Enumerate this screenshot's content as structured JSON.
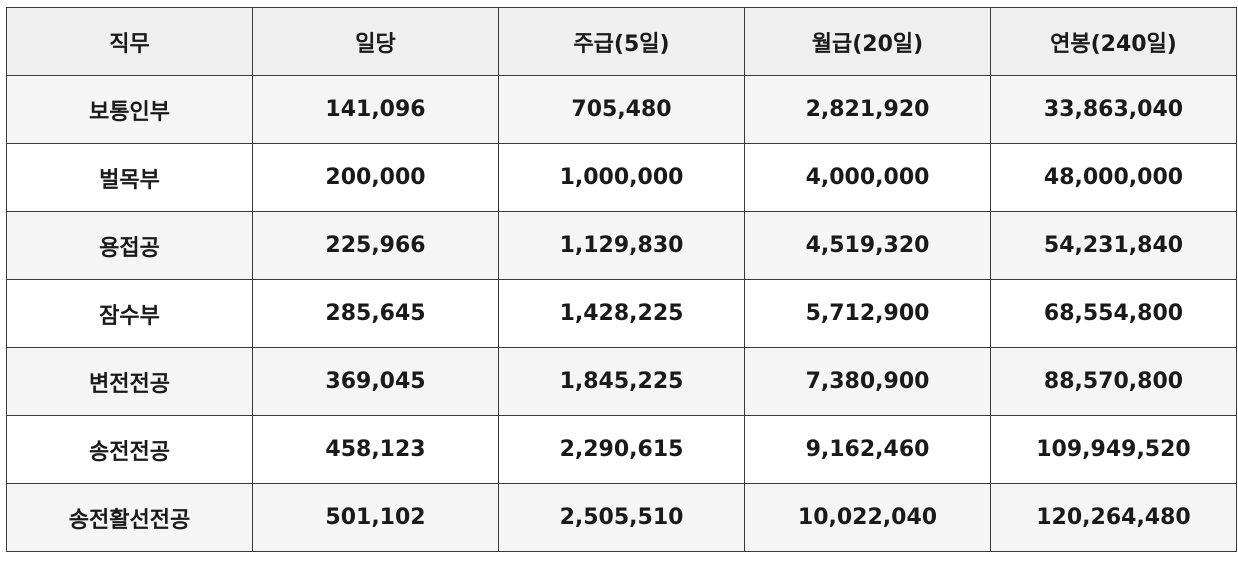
{
  "table": {
    "header": [
      "직무",
      "일당",
      "주급(5일)",
      "월급(20일)",
      "연봉(240일)"
    ],
    "rows": [
      [
        "보통인부",
        "141,096",
        "705,480",
        "2,821,920",
        "33,863,040"
      ],
      [
        "벌목부",
        "200,000",
        "1,000,000",
        "4,000,000",
        "48,000,000"
      ],
      [
        "용접공",
        "225,966",
        "1,129,830",
        "4,519,320",
        "54,231,840"
      ],
      [
        "잠수부",
        "285,645",
        "1,428,225",
        "5,712,900",
        "68,554,800"
      ],
      [
        "변전전공",
        "369,045",
        "1,845,225",
        "7,380,900",
        "88,570,800"
      ],
      [
        "송전전공",
        "458,123",
        "2,290,615",
        "9,162,460",
        "109,949,520"
      ],
      [
        "송전활선전공",
        "501,102",
        "2,505,510",
        "10,022,040",
        "120,264,480"
      ]
    ]
  }
}
